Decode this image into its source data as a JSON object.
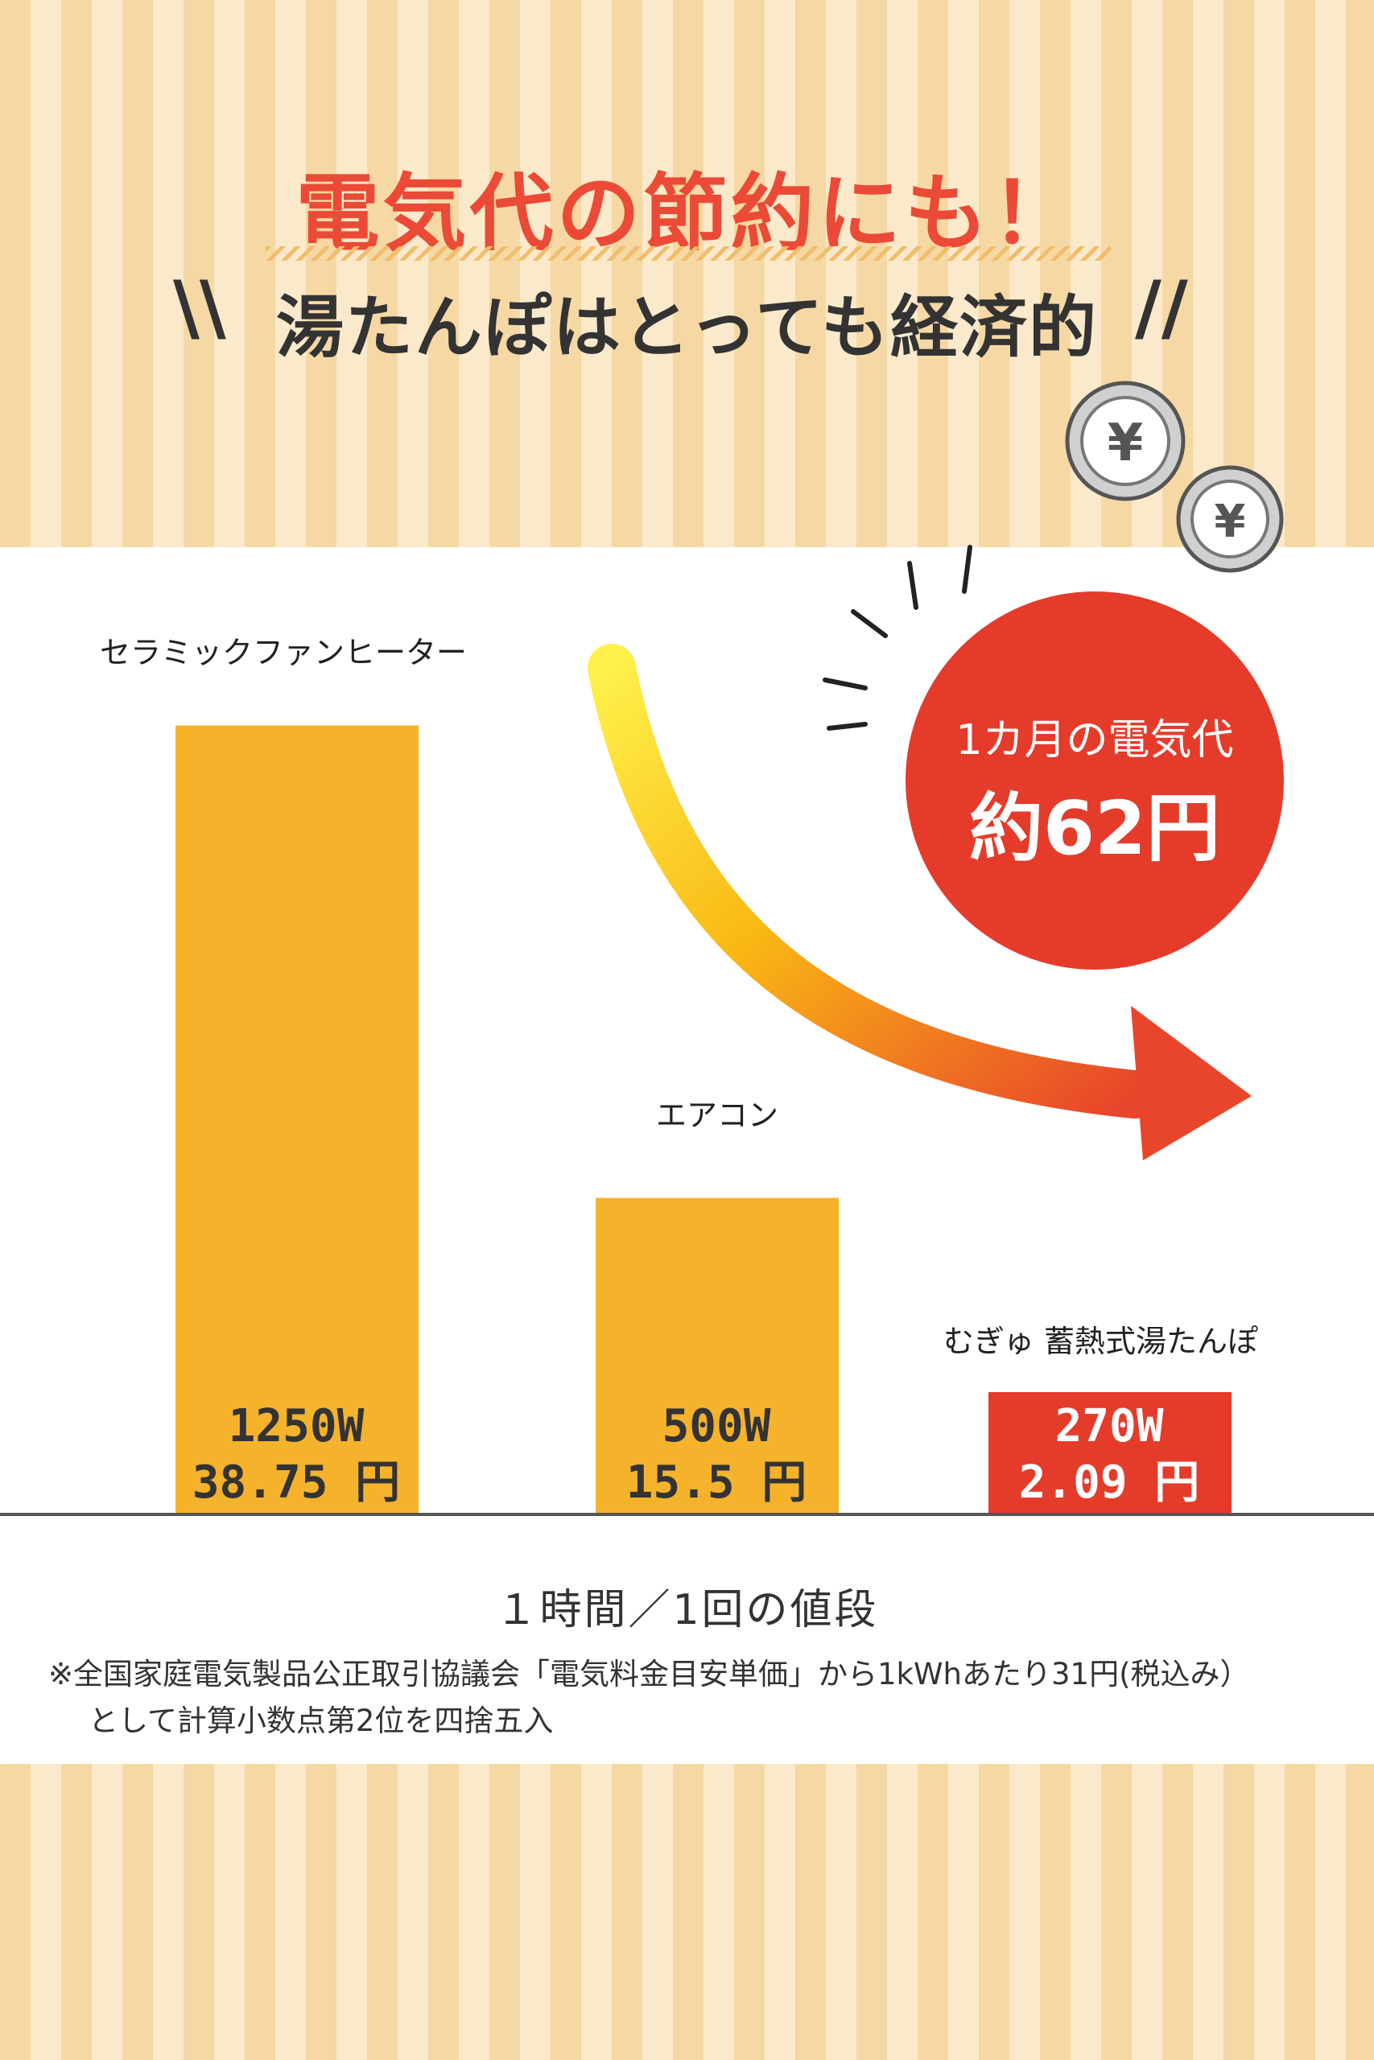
{
  "headline": "電気代の節約にも！",
  "subheadline": "湯たんぽはとっても経済的",
  "slash_left": "\\\\",
  "slash_right": "//",
  "coin_symbol": "¥",
  "badge": {
    "line1": "1カ月の電気代",
    "line2": "約62円"
  },
  "caption": "１時間／1回の値段",
  "notes": [
    "※全国家庭電気製品公正取引協議会「電気料金目安単価」から1kWhあたり31円(税込み）",
    "として計算小数点第2位を四捨五入"
  ],
  "colors": {
    "bar": "#f5b32b",
    "bar_highlight": "#e53b2b",
    "badge": "#e53b2b",
    "headline": "#ea4a36"
  },
  "chart_data": {
    "type": "bar",
    "title": "",
    "xlabel": "",
    "ylabel": "",
    "categories": [
      "セラミックファンヒーター",
      "エアコン",
      "むぎゅ 蓄熱式湯たんぽ"
    ],
    "series": [
      {
        "values": [
          38.75,
          15.5,
          2.09
        ],
        "watts": [
          "1250W",
          "500W",
          "270W"
        ],
        "prices": [
          "38.75 円",
          "15.5 円",
          "2.09 円"
        ]
      }
    ],
    "ylim": [
      0,
      40
    ],
    "grid": false,
    "highlight_index": 2
  }
}
